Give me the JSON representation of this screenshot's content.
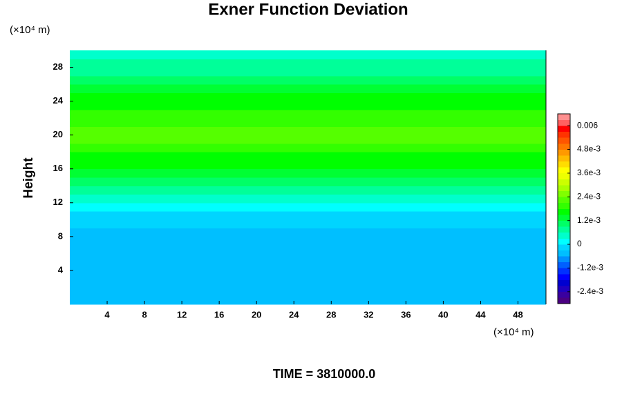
{
  "chart_data": {
    "type": "contour",
    "title": "Exner Function Deviation",
    "ylabel": "Height",
    "y_unit": "(×10⁴ m)",
    "x_unit": "(×10⁴ m)",
    "footer": "TIME = 3810000.0",
    "xlim": [
      0,
      51
    ],
    "ylim": [
      0,
      30
    ],
    "xticks": [
      4,
      8,
      12,
      16,
      20,
      24,
      28,
      32,
      36,
      40,
      44,
      48
    ],
    "yticks": [
      4,
      8,
      12,
      16,
      20,
      24,
      28
    ],
    "y_edges": [
      0,
      9,
      10,
      11,
      12,
      13,
      14,
      15,
      16,
      17,
      18,
      19,
      20,
      21,
      22,
      23,
      24,
      25,
      26,
      27,
      28,
      29,
      30
    ],
    "values": [
      -0.0005,
      -0.0002,
      -0.0001,
      0.0001,
      0.0004,
      0.0007,
      0.001,
      0.0013,
      0.0016,
      0.0017,
      0.0019,
      0.0022,
      0.0022,
      0.002,
      0.0019,
      0.0017,
      0.0016,
      0.0013,
      0.001,
      0.0008,
      0.00065,
      0.0005
    ],
    "clim": [
      -0.003,
      0.0066
    ],
    "colors": [
      "#4b0082",
      "#3a00a0",
      "#2000c0",
      "#0000d0",
      "#0000ff",
      "#0030ff",
      "#0060ff",
      "#0090ff",
      "#00bfff",
      "#00d5ff",
      "#00ffff",
      "#00ffcc",
      "#00ff99",
      "#00ff66",
      "#00ff33",
      "#00ff00",
      "#33ff00",
      "#55ff00",
      "#80ff00",
      "#aaff00",
      "#ccff00",
      "#eeff00",
      "#ffff00",
      "#ffdd00",
      "#ffbb00",
      "#ff9900",
      "#ff7700",
      "#ff5500",
      "#ff3300",
      "#ff0000",
      "#ff6060",
      "#ff9090"
    ],
    "cticks": [
      0.006,
      {
        "value": 0.0048,
        "label": "4.8e-3"
      },
      {
        "value": 0.0036,
        "label": "3.6e-3"
      },
      {
        "value": 0.0024,
        "label": "2.4e-3"
      },
      {
        "value": 0.0012,
        "label": "1.2e-3"
      },
      0,
      {
        "value": -0.0012,
        "label": "-1.2e-3"
      },
      {
        "value": -0.0024,
        "label": "-2.4e-3"
      }
    ]
  }
}
